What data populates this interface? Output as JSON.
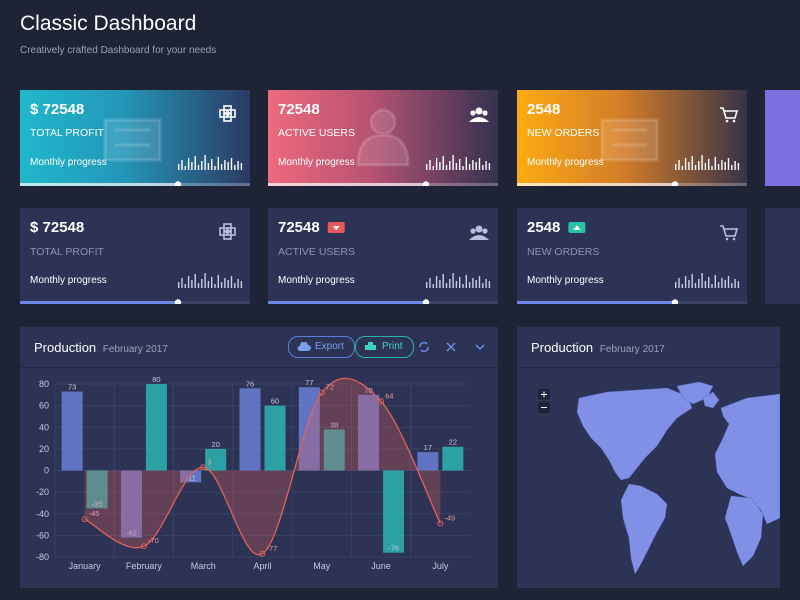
{
  "header": {
    "title": "Classic Dashboard",
    "subtitle": "Creatively crafted Dashboard for your needs"
  },
  "cards": [
    {
      "value": "$ 72548",
      "label": "TOTAL PROFIT",
      "footer": "Monthly progress"
    },
    {
      "value": "72548",
      "label": "ACTIVE USERS",
      "footer": "Monthly progress"
    },
    {
      "value": "2548",
      "label": "NEW ORDERS",
      "footer": "Monthly progress"
    },
    {
      "value": "$ 72548",
      "label": "TOTAL PROFIT",
      "footer": "Monthly progress"
    },
    {
      "value": "72548",
      "label": "ACTIVE USERS",
      "footer": "Monthly progress"
    },
    {
      "value": "2548",
      "label": "NEW ORDERS",
      "footer": "Monthly progress"
    }
  ],
  "panels": [
    {
      "title": "Production",
      "subtitle": "February 2017",
      "buttons": [
        "Export",
        "Print"
      ]
    },
    {
      "title": "Production",
      "subtitle": "February 2017"
    }
  ],
  "chart_data": {
    "type": "bar",
    "categories": [
      "January",
      "February",
      "March",
      "April",
      "May",
      "June",
      "July"
    ],
    "series": [
      {
        "type": "bar",
        "color": "#6b7fd7",
        "values": [
          73,
          -62,
          -11,
          76,
          77,
          70,
          17
        ]
      },
      {
        "type": "bar",
        "color": "#2bb5b5",
        "values": [
          -35,
          80,
          20,
          60,
          38,
          -76,
          22
        ]
      },
      {
        "type": "line",
        "color": "#e0605e",
        "values": [
          -45,
          -70,
          3,
          -77,
          72,
          64,
          -49
        ]
      }
    ],
    "ylim": [
      -80,
      80
    ],
    "yticks": [
      -80,
      -60,
      -40,
      -20,
      0,
      20,
      40,
      60,
      80
    ],
    "grid": true
  }
}
